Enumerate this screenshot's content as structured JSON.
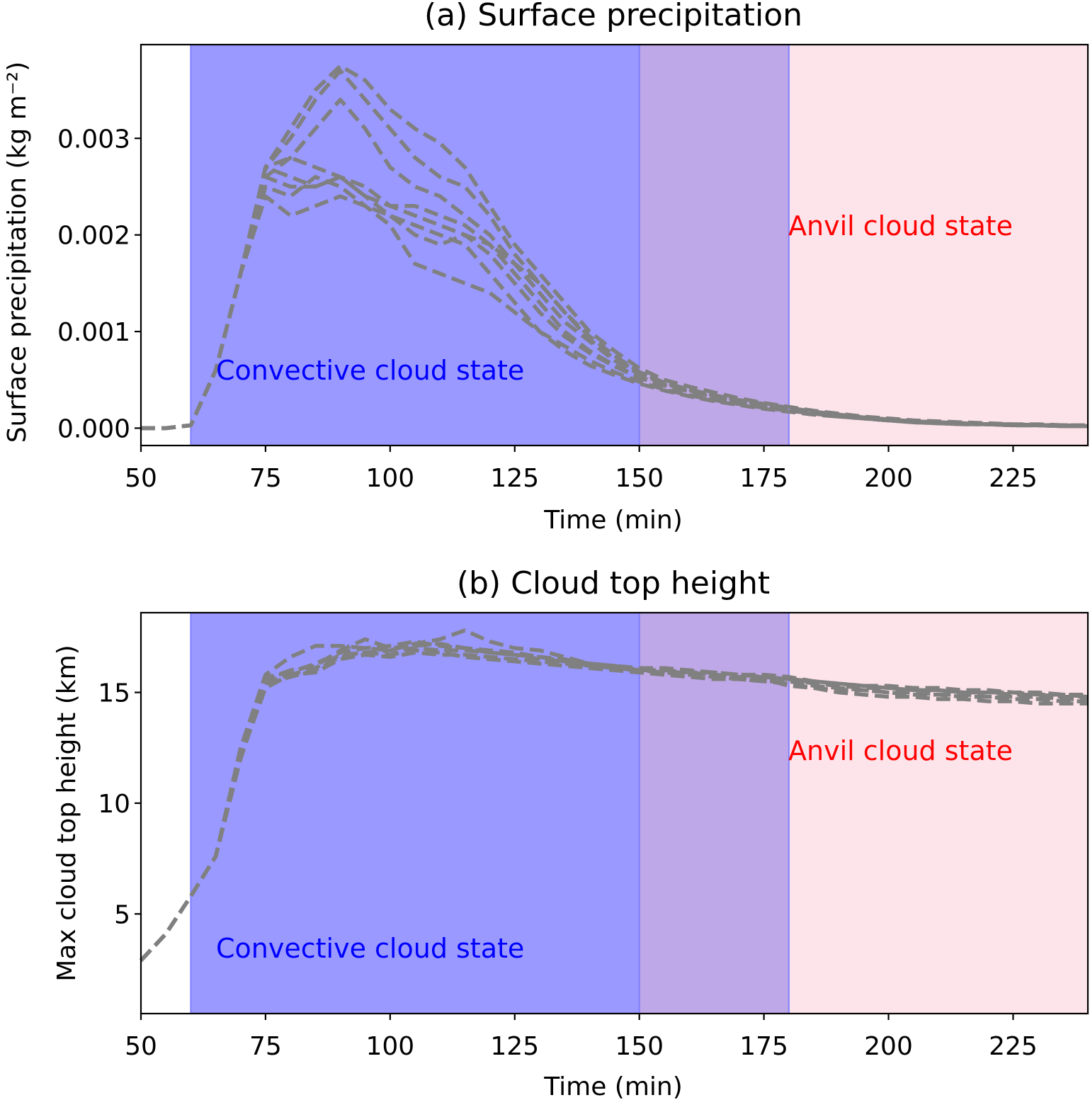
{
  "colors": {
    "convective_band": "#9999ff",
    "transition_band": "#bfa8e8",
    "anvil_band": "#fde4ea",
    "convective_text": "#0000ff",
    "anvil_text": "#ff0000",
    "series_line": "#808080"
  },
  "chart_data": [
    {
      "type": "line",
      "title": "(a) Surface precipitation",
      "xlabel": "Time (min)",
      "ylabel": "Surface precipitation (kg m⁻²)",
      "xlim": [
        50,
        240
      ],
      "ylim": [
        -0.00018,
        0.00397
      ],
      "xticks": [
        "50",
        "75",
        "100",
        "125",
        "150",
        "175",
        "200",
        "225"
      ],
      "yticks": [
        "0.000",
        "0.001",
        "0.002",
        "0.003"
      ],
      "yticks_values": [
        0.0,
        0.001,
        0.002,
        0.003
      ],
      "grid": false,
      "regions": [
        {
          "name": "convective",
          "x": [
            60,
            150
          ]
        },
        {
          "name": "transition",
          "x": [
            150,
            180
          ]
        },
        {
          "name": "anvil",
          "x": [
            180,
            240
          ]
        }
      ],
      "annotations": {
        "convective": "Convective cloud state",
        "anvil": "Anvil cloud state"
      },
      "x": [
        50,
        55,
        60,
        65,
        70,
        75,
        80,
        85,
        90,
        95,
        100,
        105,
        110,
        115,
        120,
        125,
        130,
        135,
        140,
        145,
        150,
        155,
        160,
        165,
        170,
        175,
        180,
        185,
        190,
        195,
        200,
        205,
        210,
        215,
        220,
        225,
        230,
        235,
        240
      ],
      "series": [
        {
          "values": [
            0.0,
            0.0,
            3e-05,
            0.0006,
            0.0016,
            0.0027,
            0.0031,
            0.0035,
            0.00375,
            0.0036,
            0.0033,
            0.0031,
            0.00295,
            0.0027,
            0.0023,
            0.0019,
            0.0016,
            0.0013,
            0.001,
            0.0008,
            0.00062,
            0.0005,
            0.00043,
            0.00037,
            0.00031,
            0.00026,
            0.00022,
            0.00018,
            0.00015,
            0.00012,
            0.0001,
            8e-05,
            7e-05,
            6e-05,
            5e-05,
            4e-05,
            4e-05,
            3e-05,
            3e-05
          ]
        },
        {
          "values": [
            0.0,
            0.0,
            3e-05,
            0.0006,
            0.0016,
            0.0027,
            0.003,
            0.0034,
            0.0037,
            0.0034,
            0.0031,
            0.0028,
            0.0026,
            0.0025,
            0.0022,
            0.0018,
            0.0015,
            0.0012,
            0.00095,
            0.00075,
            0.00058,
            0.00047,
            0.0004,
            0.00034,
            0.00029,
            0.00025,
            0.00021,
            0.00017,
            0.00014,
            0.00011,
            9e-05,
            7e-05,
            6e-05,
            5e-05,
            4e-05,
            4e-05,
            3e-05,
            3e-05,
            2e-05
          ]
        },
        {
          "values": [
            0.0,
            0.0,
            3e-05,
            0.0006,
            0.0016,
            0.0026,
            0.0028,
            0.0031,
            0.0034,
            0.0031,
            0.0027,
            0.0025,
            0.0024,
            0.0022,
            0.002,
            0.0017,
            0.0014,
            0.0011,
            0.0009,
            0.0007,
            0.00056,
            0.00046,
            0.00039,
            0.00033,
            0.00028,
            0.00024,
            0.0002,
            0.00016,
            0.00013,
            0.00011,
            9e-05,
            7e-05,
            6e-05,
            5e-05,
            4e-05,
            3e-05,
            3e-05,
            3e-05,
            2e-05
          ]
        },
        {
          "values": [
            0.0,
            0.0,
            3e-05,
            0.0006,
            0.0016,
            0.0027,
            0.0028,
            0.0027,
            0.0026,
            0.0024,
            0.0023,
            0.0022,
            0.0021,
            0.002,
            0.0018,
            0.0015,
            0.0012,
            0.00095,
            0.00078,
            0.00064,
            0.00052,
            0.00044,
            0.00038,
            0.00032,
            0.00027,
            0.00023,
            0.00019,
            0.00016,
            0.00013,
            0.0001,
            8e-05,
            7e-05,
            6e-05,
            5e-05,
            4e-05,
            3e-05,
            3e-05,
            2e-05,
            2e-05
          ]
        },
        {
          "values": [
            0.0,
            0.0,
            3e-05,
            0.0006,
            0.0016,
            0.0026,
            0.0025,
            0.0025,
            0.0026,
            0.0024,
            0.0022,
            0.002,
            0.0019,
            0.002,
            0.0019,
            0.0016,
            0.0013,
            0.001,
            0.0008,
            0.00065,
            0.00053,
            0.00045,
            0.00038,
            0.00032,
            0.00027,
            0.00023,
            0.00019,
            0.00016,
            0.00013,
            0.0001,
            8e-05,
            7e-05,
            6e-05,
            5e-05,
            4e-05,
            3e-05,
            3e-05,
            2e-05,
            2e-05
          ]
        },
        {
          "values": [
            0.0,
            0.0,
            3e-05,
            0.0006,
            0.0016,
            0.0025,
            0.0024,
            0.0026,
            0.0025,
            0.0023,
            0.0021,
            0.0017,
            0.0016,
            0.0015,
            0.0014,
            0.0012,
            0.001,
            0.00085,
            0.0007,
            0.00058,
            0.00048,
            0.0004,
            0.00034,
            0.00029,
            0.00025,
            0.00021,
            0.00018,
            0.00015,
            0.00012,
            0.0001,
            8e-05,
            6e-05,
            5e-05,
            4e-05,
            4e-05,
            3e-05,
            3e-05,
            2e-05,
            2e-05
          ]
        },
        {
          "values": [
            0.0,
            0.0,
            3e-05,
            0.0006,
            0.0016,
            0.0024,
            0.0022,
            0.0023,
            0.0024,
            0.0023,
            0.0022,
            0.0021,
            0.002,
            0.0019,
            0.0016,
            0.0013,
            0.001,
            0.0008,
            0.00065,
            0.00055,
            0.00046,
            0.00039,
            0.00033,
            0.00028,
            0.00024,
            0.0002,
            0.00017,
            0.00014,
            0.00012,
            0.0001,
            8e-05,
            6e-05,
            5e-05,
            4e-05,
            4e-05,
            3e-05,
            3e-05,
            2e-05,
            2e-05
          ]
        },
        {
          "values": [
            0.0,
            0.0,
            3e-05,
            0.0006,
            0.0016,
            0.0027,
            0.0026,
            0.0025,
            0.0026,
            0.0025,
            0.0023,
            0.0023,
            0.0022,
            0.0021,
            0.0019,
            0.0017,
            0.0015,
            0.0012,
            0.00092,
            0.00072,
            0.00058,
            0.00047,
            0.0004,
            0.00034,
            0.00029,
            0.00025,
            0.00021,
            0.00017,
            0.00014,
            0.00011,
            9e-05,
            7e-05,
            6e-05,
            5e-05,
            4e-05,
            4e-05,
            3e-05,
            3e-05,
            2e-05
          ]
        }
      ]
    },
    {
      "type": "line",
      "title": "(b) Cloud top height",
      "xlabel": "Time (min)",
      "ylabel": "Max cloud top height (km)",
      "xlim": [
        50,
        240
      ],
      "ylim": [
        0.5,
        18.6
      ],
      "xticks": [
        "50",
        "75",
        "100",
        "125",
        "150",
        "175",
        "200",
        "225"
      ],
      "yticks": [
        "5",
        "10",
        "15"
      ],
      "yticks_values": [
        5,
        10,
        15
      ],
      "grid": false,
      "regions": [
        {
          "name": "convective",
          "x": [
            60,
            150
          ]
        },
        {
          "name": "transition",
          "x": [
            150,
            180
          ]
        },
        {
          "name": "anvil",
          "x": [
            180,
            240
          ]
        }
      ],
      "annotations": {
        "convective": "Convective cloud state",
        "anvil": "Anvil cloud state"
      },
      "x": [
        50,
        55,
        60,
        65,
        70,
        75,
        80,
        85,
        90,
        95,
        100,
        105,
        110,
        115,
        120,
        125,
        130,
        135,
        140,
        145,
        150,
        155,
        160,
        165,
        170,
        175,
        180,
        185,
        190,
        195,
        200,
        205,
        210,
        215,
        220,
        225,
        230,
        235,
        240
      ],
      "series": [
        {
          "values": [
            2.9,
            4.1,
            5.8,
            7.6,
            12.5,
            15.8,
            16.6,
            17.1,
            17.1,
            17.0,
            16.9,
            17.2,
            17.4,
            17.8,
            17.3,
            17.0,
            16.9,
            16.6,
            16.3,
            16.2,
            16.0,
            15.9,
            15.9,
            15.8,
            15.7,
            15.6,
            15.3,
            15.2,
            15.1,
            15.1,
            15.0,
            15.0,
            14.9,
            14.9,
            14.8,
            14.8,
            14.8,
            14.7,
            14.7
          ]
        },
        {
          "values": [
            2.9,
            4.1,
            5.8,
            7.6,
            12.3,
            15.6,
            16.0,
            16.2,
            16.9,
            17.4,
            17.0,
            17.1,
            17.2,
            17.0,
            16.8,
            16.7,
            16.6,
            16.5,
            16.3,
            16.2,
            16.1,
            16.1,
            16.0,
            15.9,
            15.8,
            15.8,
            15.7,
            15.5,
            15.4,
            15.3,
            15.3,
            15.2,
            15.2,
            15.1,
            15.1,
            15.0,
            15.0,
            14.9,
            14.9
          ]
        },
        {
          "values": [
            2.9,
            4.1,
            5.8,
            7.6,
            12.0,
            15.4,
            15.7,
            16.0,
            16.6,
            16.8,
            16.9,
            17.0,
            16.9,
            16.9,
            16.8,
            16.7,
            16.5,
            16.4,
            16.2,
            16.1,
            16.0,
            15.9,
            15.8,
            15.8,
            15.7,
            15.7,
            15.6,
            15.5,
            15.4,
            15.3,
            15.2,
            15.1,
            15.1,
            15.0,
            15.0,
            14.9,
            14.9,
            14.8,
            14.8
          ]
        },
        {
          "values": [
            2.9,
            4.1,
            5.8,
            7.6,
            12.1,
            15.2,
            15.8,
            16.1,
            16.7,
            16.8,
            16.7,
            16.9,
            16.8,
            16.6,
            16.5,
            16.4,
            16.3,
            16.2,
            16.1,
            16.0,
            15.9,
            15.8,
            15.7,
            15.6,
            15.6,
            15.5,
            15.4,
            15.2,
            15.0,
            14.9,
            14.8,
            14.8,
            14.7,
            14.7,
            14.6,
            14.6,
            14.5,
            14.5,
            14.5
          ]
        },
        {
          "values": [
            2.9,
            4.1,
            5.8,
            7.6,
            12.4,
            15.7,
            15.9,
            16.3,
            16.8,
            17.0,
            17.1,
            17.3,
            17.1,
            17.0,
            16.9,
            16.8,
            16.6,
            16.4,
            16.2,
            16.1,
            16.0,
            16.0,
            15.9,
            15.9,
            15.8,
            15.7,
            15.6,
            15.4,
            15.3,
            15.2,
            15.2,
            15.1,
            15.1,
            15.0,
            15.0,
            15.0,
            14.9,
            14.9,
            14.8
          ]
        },
        {
          "values": [
            2.9,
            4.1,
            5.8,
            7.6,
            12.2,
            15.5,
            15.8,
            15.9,
            16.5,
            16.7,
            16.6,
            16.8,
            16.7,
            16.7,
            16.6,
            16.5,
            16.4,
            16.3,
            16.2,
            16.1,
            16.0,
            15.9,
            15.8,
            15.7,
            15.6,
            15.5,
            15.5,
            15.3,
            15.2,
            15.1,
            15.0,
            14.9,
            14.9,
            14.8,
            14.8,
            14.7,
            14.7,
            14.6,
            14.6
          ]
        }
      ]
    }
  ]
}
